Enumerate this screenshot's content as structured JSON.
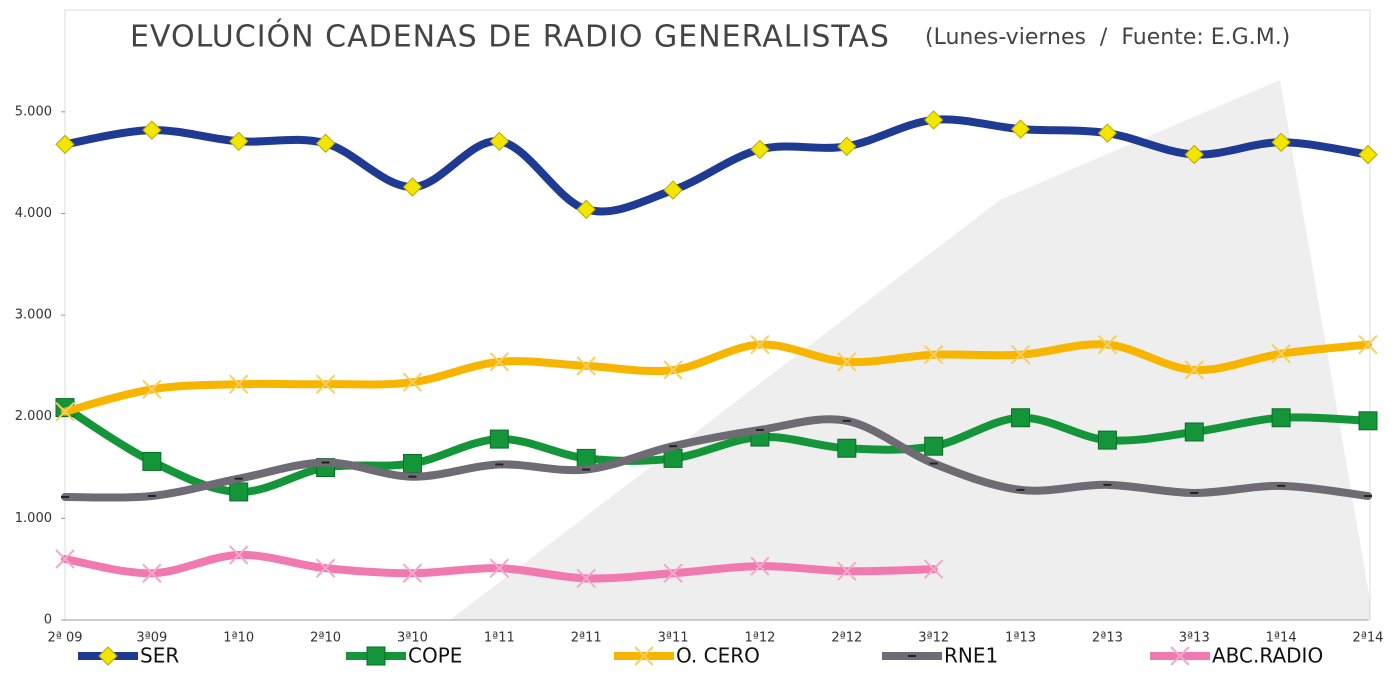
{
  "chart_data": {
    "type": "line",
    "title": "EVOLUCIÓN CADENAS DE RADIO GENERALISTAS",
    "subtitle": "(Lunes-viernes  /  Fuente: E.G.M.)",
    "categories": [
      "2ª 09",
      "3ª09",
      "1ª10",
      "2ª10",
      "3ª10",
      "1ª11",
      "2ª11",
      "3ª11",
      "1ª12",
      "2ª12",
      "3ª12",
      "1ª13",
      "2ª13",
      "3ª13",
      "1ª14",
      "2ª14"
    ],
    "series": [
      {
        "name": "SER",
        "color": "#1f3a93",
        "marker": "diamond",
        "marker_color": "#f2e600",
        "values": [
          4680,
          4820,
          4710,
          4690,
          4260,
          4710,
          4040,
          4230,
          4630,
          4660,
          4920,
          4830,
          4790,
          4580,
          4700,
          4580
        ]
      },
      {
        "name": "COPE",
        "color": "#14953a",
        "marker": "square",
        "marker_color": "#14953a",
        "values": [
          2090,
          1560,
          1260,
          1500,
          1540,
          1780,
          1590,
          1590,
          1800,
          1690,
          1710,
          1990,
          1770,
          1850,
          1990,
          1960
        ]
      },
      {
        "name": "O. CERO",
        "color": "#f7b500",
        "marker": "x",
        "marker_color": "#f5cf60",
        "values": [
          2050,
          2270,
          2320,
          2320,
          2340,
          2540,
          2500,
          2460,
          2710,
          2540,
          2610,
          2610,
          2710,
          2460,
          2620,
          2710
        ]
      },
      {
        "name": "RNE1",
        "color": "#6e6b74",
        "marker": "dash",
        "marker_color": "#222",
        "values": [
          1210,
          1220,
          1390,
          1550,
          1410,
          1530,
          1480,
          1710,
          1870,
          1960,
          1540,
          1280,
          1330,
          1250,
          1320,
          1220
        ]
      },
      {
        "name": "ABC.RADIO",
        "color": "#f07ab0",
        "marker": "x",
        "marker_color": "#f4a7c8",
        "values": [
          600,
          460,
          640,
          510,
          460,
          510,
          410,
          460,
          530,
          480,
          500,
          null,
          null,
          null,
          null,
          null
        ]
      }
    ],
    "ylim": [
      0,
      5500
    ],
    "yticks": [
      0,
      {
        "value": 1000,
        "label": "1.000"
      },
      {
        "value": 2000,
        "label": "2.000"
      },
      {
        "value": 3000,
        "label": "3.000"
      },
      {
        "value": 4000,
        "label": "4.000"
      },
      {
        "value": 5000,
        "label": "5.000"
      }
    ]
  }
}
